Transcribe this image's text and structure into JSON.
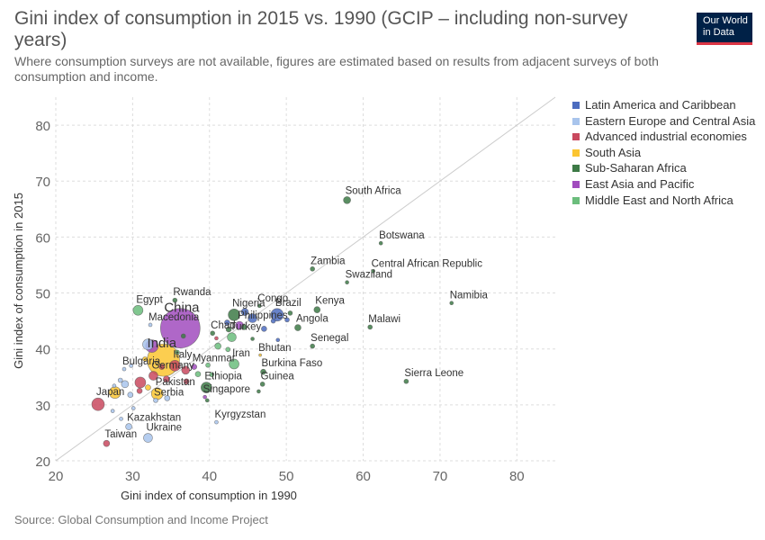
{
  "header": {
    "title": "Gini index of consumption in 2015 vs. 1990 (GCIP – including non-survey years)",
    "subtitle": "Where consumption surveys are not available, figures are estimated based on results from adjacent surveys of both consumption and income.",
    "logo_line1": "Our World",
    "logo_line2": "in Data"
  },
  "footer": {
    "source": "Source: Global Consumption and Income Project"
  },
  "chart_data": {
    "type": "scatter",
    "xlabel": "Gini index of consumption in 1990",
    "ylabel": "Gini index of consumption in 2015",
    "xlim": [
      20,
      85
    ],
    "ylim": [
      20,
      85
    ],
    "xticks": [
      20,
      30,
      40,
      50,
      60,
      70,
      80
    ],
    "yticks": [
      20,
      30,
      40,
      50,
      60,
      70,
      80
    ],
    "grid": true,
    "reference_line": "y = x",
    "legend_position": "right",
    "regions": [
      {
        "name": "Latin America and Caribbean",
        "color": "#4c6cbf"
      },
      {
        "name": "Eastern Europe and Central Asia",
        "color": "#a8c4ec"
      },
      {
        "name": "Advanced industrial economies",
        "color": "#c9495f"
      },
      {
        "name": "South Asia",
        "color": "#fbc531"
      },
      {
        "name": "Sub-Saharan Africa",
        "color": "#3d7a46"
      },
      {
        "name": "East Asia and Pacific",
        "color": "#a14cbe"
      },
      {
        "name": "Middle East and North Africa",
        "color": "#6bbd7c"
      }
    ],
    "points": [
      {
        "label": "South Africa",
        "x": 57.9,
        "y": 66.6,
        "region": 4,
        "r": 4
      },
      {
        "label": "Botswana",
        "x": 62.3,
        "y": 58.9,
        "region": 4,
        "r": 2
      },
      {
        "label": "Zambia",
        "x": 53.4,
        "y": 54.3,
        "region": 4,
        "r": 2.5
      },
      {
        "label": "Central African Republic",
        "x": 61.3,
        "y": 53.9,
        "region": 4,
        "r": 2
      },
      {
        "label": "Swaziland",
        "x": 57.9,
        "y": 51.9,
        "region": 4,
        "r": 2
      },
      {
        "label": "Namibia",
        "x": 71.5,
        "y": 48.2,
        "region": 4,
        "r": 2
      },
      {
        "label": "Congo",
        "x": 46.5,
        "y": 47.7,
        "region": 4,
        "r": 2
      },
      {
        "label": "Kenya",
        "x": 54.0,
        "y": 47.0,
        "region": 4,
        "r": 3.5
      },
      {
        "label": "Nigeria",
        "x": 43.2,
        "y": 46.1,
        "region": 4,
        "r": 6.5
      },
      {
        "label": "Brazil",
        "x": 48.8,
        "y": 46.1,
        "region": 0,
        "r": 7
      },
      {
        "label": "Philippines",
        "x": 43.9,
        "y": 44.2,
        "region": 5,
        "r": 4.5
      },
      {
        "label": "Angola",
        "x": 51.5,
        "y": 43.8,
        "region": 4,
        "r": 3.5
      },
      {
        "label": "Malawi",
        "x": 60.9,
        "y": 43.9,
        "region": 4,
        "r": 2.5
      },
      {
        "label": "Chad",
        "x": 40.4,
        "y": 42.8,
        "region": 4,
        "r": 2.5
      },
      {
        "label": "China",
        "x": 36.2,
        "y": 43.7,
        "region": 5,
        "r": 22
      },
      {
        "label": "Rwanda",
        "x": 35.5,
        "y": 48.7,
        "region": 4,
        "r": 2.5
      },
      {
        "label": "Egypt",
        "x": 30.7,
        "y": 46.9,
        "region": 6,
        "r": 5.5
      },
      {
        "label": "Macedonia",
        "x": 32.3,
        "y": 44.3,
        "region": 1,
        "r": 2
      },
      {
        "label": "Turkey",
        "x": 42.9,
        "y": 42.1,
        "region": 6,
        "r": 5
      },
      {
        "label": "Senegal",
        "x": 53.4,
        "y": 40.5,
        "region": 4,
        "r": 2.5
      },
      {
        "label": "India",
        "x": 34.0,
        "y": 38.0,
        "region": 3,
        "r": 18
      },
      {
        "label": "Bhutan",
        "x": 46.6,
        "y": 38.9,
        "region": 3,
        "r": 1.5
      },
      {
        "label": "Iran",
        "x": 43.2,
        "y": 37.3,
        "region": 6,
        "r": 5.5
      },
      {
        "label": "Bulgaria",
        "x": 28.9,
        "y": 36.4,
        "region": 1,
        "r": 2
      },
      {
        "label": "Italy",
        "x": 35.5,
        "y": 37.0,
        "region": 2,
        "r": 6
      },
      {
        "label": "Myanmar",
        "x": 38.0,
        "y": 36.8,
        "region": 5,
        "r": 3
      },
      {
        "label": "Burkina Faso",
        "x": 47.0,
        "y": 35.9,
        "region": 4,
        "r": 3
      },
      {
        "label": "Germany",
        "x": 32.7,
        "y": 35.2,
        "region": 2,
        "r": 5
      },
      {
        "label": "Guinea",
        "x": 46.9,
        "y": 33.7,
        "region": 4,
        "r": 2.5
      },
      {
        "label": "Sierra Leone",
        "x": 65.6,
        "y": 34.2,
        "region": 4,
        "r": 2.5
      },
      {
        "label": "Ethiopia",
        "x": 39.6,
        "y": 33.1,
        "region": 4,
        "r": 6
      },
      {
        "label": "Pakistan",
        "x": 33.2,
        "y": 32.0,
        "region": 3,
        "r": 6.5
      },
      {
        "label": "Singapore",
        "x": 39.4,
        "y": 31.4,
        "region": 5,
        "r": 2
      },
      {
        "label": "Japan",
        "x": 25.5,
        "y": 30.1,
        "region": 2,
        "r": 7
      },
      {
        "label": "Serbia",
        "x": 33.0,
        "y": 30.8,
        "region": 1,
        "r": 2.5
      },
      {
        "label": "Kyrgyzstan",
        "x": 40.9,
        "y": 26.9,
        "region": 1,
        "r": 2
      },
      {
        "label": "Kazakhstan",
        "x": 29.5,
        "y": 26.1,
        "region": 1,
        "r": 3.5
      },
      {
        "label": "Ukraine",
        "x": 32.0,
        "y": 24.1,
        "region": 1,
        "r": 5
      },
      {
        "label": "Taiwan",
        "x": 26.6,
        "y": 23.1,
        "region": 2,
        "r": 3.5
      },
      {
        "label": "",
        "x": 32.5,
        "y": 40.5,
        "region": 5,
        "r": 7
      },
      {
        "label": "",
        "x": 32.0,
        "y": 40.8,
        "region": 1,
        "r": 6
      },
      {
        "label": "",
        "x": 31.0,
        "y": 34.0,
        "region": 2,
        "r": 6
      },
      {
        "label": "",
        "x": 27.7,
        "y": 32.2,
        "region": 3,
        "r": 6.5
      },
      {
        "label": "",
        "x": 34.5,
        "y": 31.2,
        "region": 1,
        "r": 3
      },
      {
        "label": "",
        "x": 36.9,
        "y": 36.2,
        "region": 2,
        "r": 4.5
      },
      {
        "label": "",
        "x": 38.5,
        "y": 35.5,
        "region": 6,
        "r": 3
      },
      {
        "label": "",
        "x": 30.9,
        "y": 32.5,
        "region": 2,
        "r": 3
      },
      {
        "label": "",
        "x": 29.0,
        "y": 33.7,
        "region": 1,
        "r": 4
      },
      {
        "label": "",
        "x": 29.7,
        "y": 31.8,
        "region": 1,
        "r": 3
      },
      {
        "label": "",
        "x": 41.1,
        "y": 40.5,
        "region": 6,
        "r": 3.5
      },
      {
        "label": "",
        "x": 42.3,
        "y": 44.7,
        "region": 0,
        "r": 3
      },
      {
        "label": "",
        "x": 45.6,
        "y": 45.5,
        "region": 0,
        "r": 5
      },
      {
        "label": "",
        "x": 44.6,
        "y": 46.6,
        "region": 0,
        "r": 4
      },
      {
        "label": "",
        "x": 47.1,
        "y": 43.6,
        "region": 0,
        "r": 3
      },
      {
        "label": "",
        "x": 48.3,
        "y": 45.0,
        "region": 0,
        "r": 2.5
      },
      {
        "label": "",
        "x": 50.1,
        "y": 45.2,
        "region": 0,
        "r": 2.5
      },
      {
        "label": "",
        "x": 42.5,
        "y": 43.5,
        "region": 4,
        "r": 3
      },
      {
        "label": "",
        "x": 44.5,
        "y": 43.9,
        "region": 4,
        "r": 3
      },
      {
        "label": "",
        "x": 50.5,
        "y": 46.4,
        "region": 4,
        "r": 2.5
      },
      {
        "label": "",
        "x": 42.4,
        "y": 39.9,
        "region": 6,
        "r": 2.5
      },
      {
        "label": "",
        "x": 39.8,
        "y": 37.1,
        "region": 6,
        "r": 2.5
      },
      {
        "label": "",
        "x": 40.3,
        "y": 35.4,
        "region": 6,
        "r": 2.5
      },
      {
        "label": "",
        "x": 37.0,
        "y": 34.2,
        "region": 2,
        "r": 3
      },
      {
        "label": "",
        "x": 34.4,
        "y": 34.6,
        "region": 2,
        "r": 3.5
      },
      {
        "label": "",
        "x": 32.0,
        "y": 33.1,
        "region": 3,
        "r": 3
      },
      {
        "label": "",
        "x": 33.8,
        "y": 36.8,
        "region": 2,
        "r": 3
      },
      {
        "label": "",
        "x": 28.4,
        "y": 34.4,
        "region": 1,
        "r": 2.5
      },
      {
        "label": "",
        "x": 27.6,
        "y": 33.4,
        "region": 1,
        "r": 2
      },
      {
        "label": "",
        "x": 29.8,
        "y": 37.0,
        "region": 1,
        "r": 2
      },
      {
        "label": "",
        "x": 30.1,
        "y": 29.4,
        "region": 1,
        "r": 2
      },
      {
        "label": "",
        "x": 27.4,
        "y": 28.9,
        "region": 1,
        "r": 2
      },
      {
        "label": "",
        "x": 28.5,
        "y": 27.5,
        "region": 1,
        "r": 2
      },
      {
        "label": "",
        "x": 31.6,
        "y": 38.2,
        "region": 3,
        "r": 2.5
      },
      {
        "label": "",
        "x": 35.8,
        "y": 39.4,
        "region": 6,
        "r": 2.5
      },
      {
        "label": "",
        "x": 36.6,
        "y": 42.3,
        "region": 4,
        "r": 2.5
      },
      {
        "label": "",
        "x": 40.9,
        "y": 41.9,
        "region": 2,
        "r": 2
      },
      {
        "label": "",
        "x": 46.4,
        "y": 32.4,
        "region": 4,
        "r": 2
      },
      {
        "label": "",
        "x": 45.6,
        "y": 41.8,
        "region": 4,
        "r": 2
      },
      {
        "label": "",
        "x": 48.9,
        "y": 41.6,
        "region": 0,
        "r": 2
      },
      {
        "label": "",
        "x": 39.7,
        "y": 30.8,
        "region": 4,
        "r": 2
      }
    ]
  }
}
